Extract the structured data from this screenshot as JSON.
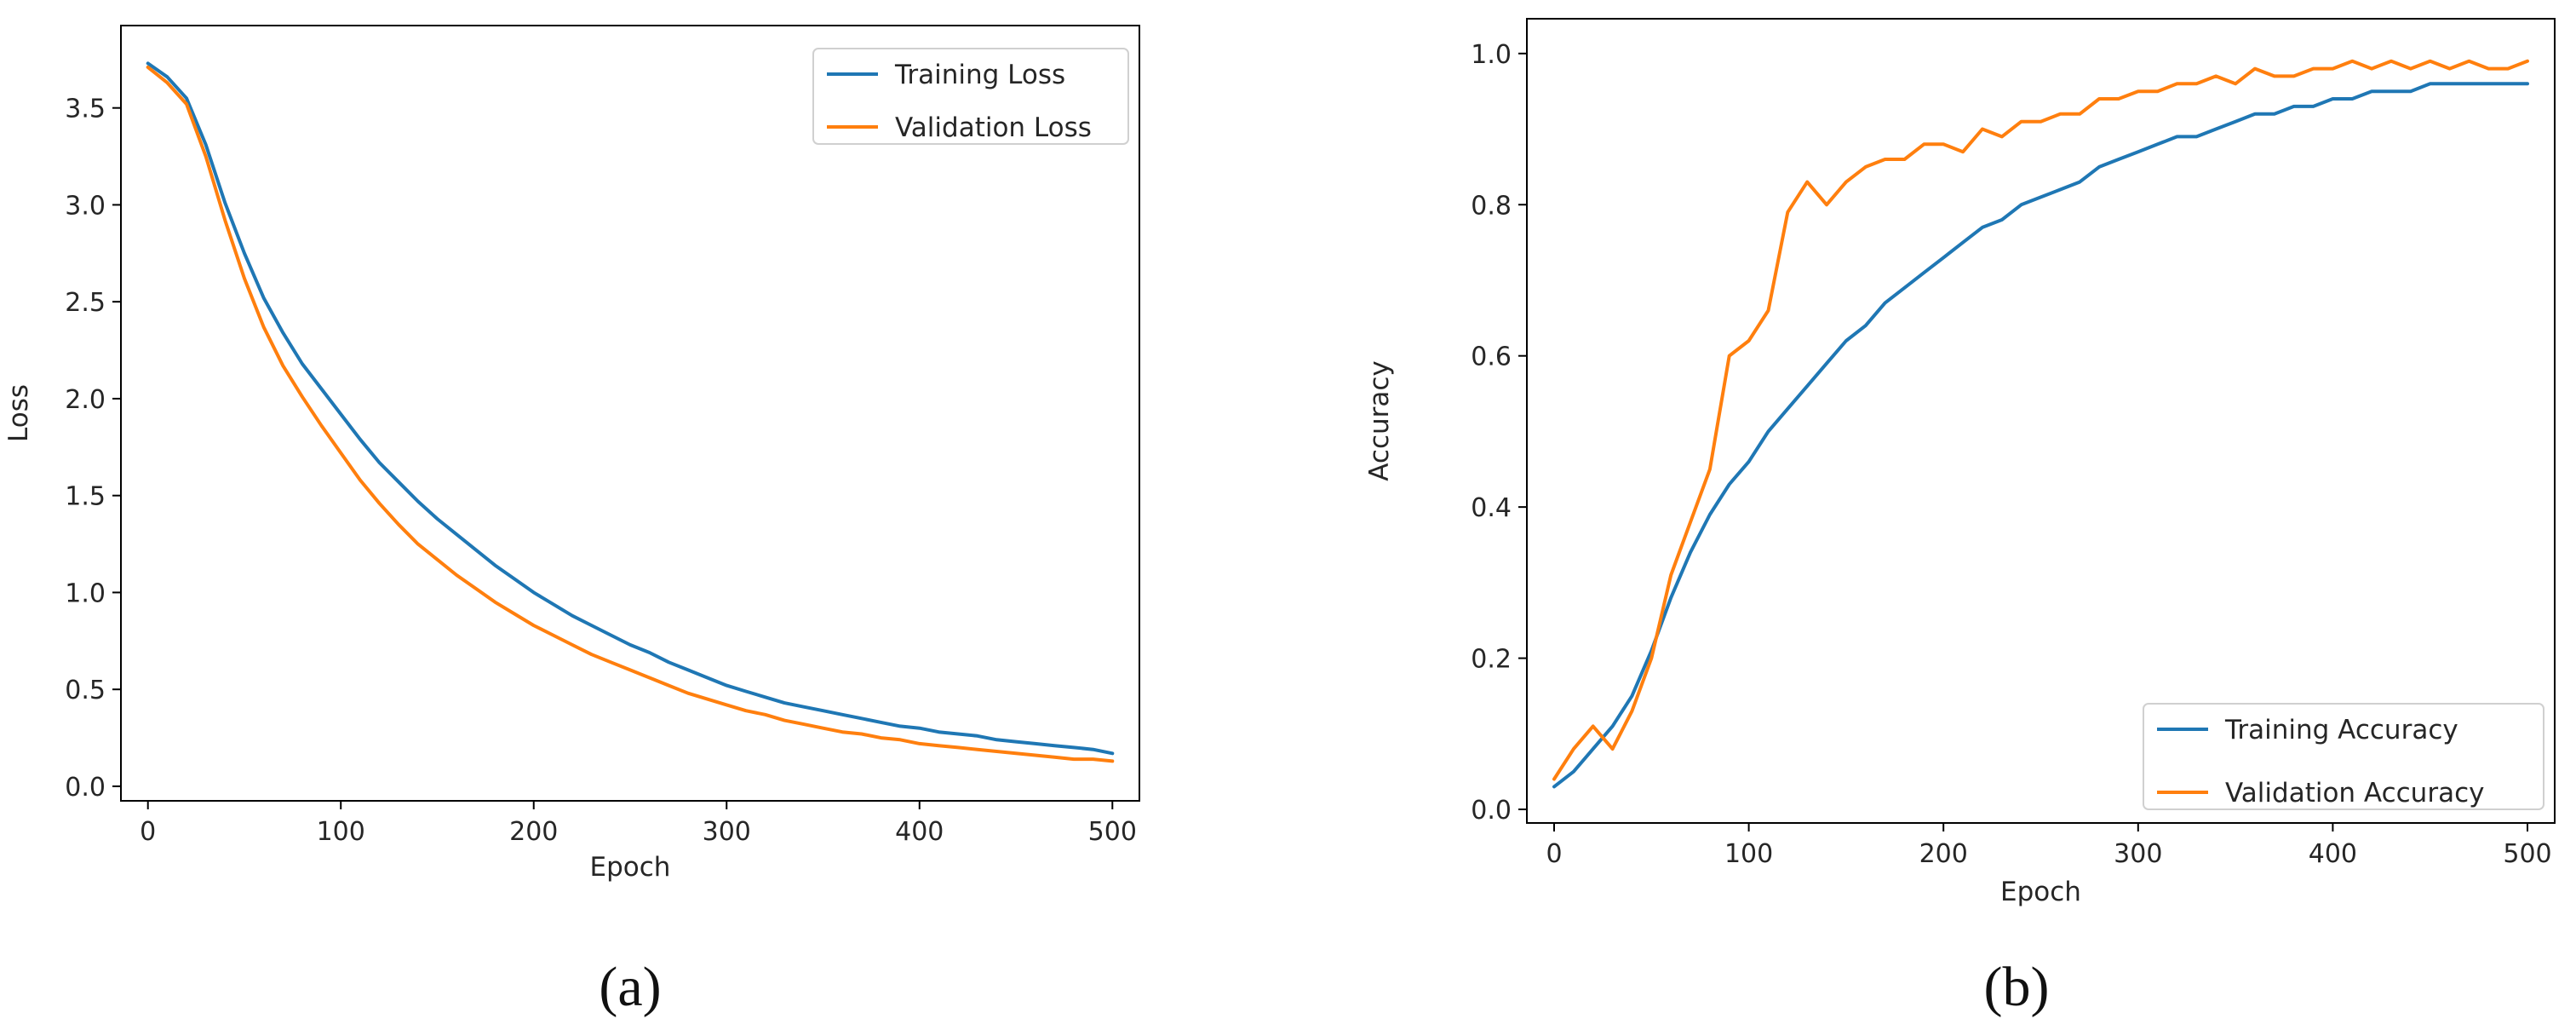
{
  "colors": {
    "training": "#1f77b4",
    "validation": "#ff7f0e",
    "axis": "#000000",
    "legend_border": "#d0d0d0"
  },
  "chart_data": [
    {
      "type": "line",
      "panel_label": "(a)",
      "title": "",
      "xlabel": "Epoch",
      "ylabel": "Loss",
      "xlim": [
        -14,
        514
      ],
      "ylim": [
        -0.075,
        3.925
      ],
      "xticks": [
        0,
        100,
        200,
        300,
        400,
        500
      ],
      "yticks": [
        0.0,
        0.5,
        1.0,
        1.5,
        2.0,
        2.5,
        3.0,
        3.5
      ],
      "xtick_labels": [
        "0",
        "100",
        "200",
        "300",
        "400",
        "500"
      ],
      "ytick_labels": [
        "0.0",
        "0.5",
        "1.0",
        "1.5",
        "2.0",
        "2.5",
        "3.0",
        "3.5"
      ],
      "grid": false,
      "legend_position": "top-right",
      "series": [
        {
          "name": "Training Loss",
          "color": "#1f77b4",
          "x": [
            0,
            10,
            20,
            30,
            40,
            50,
            60,
            70,
            80,
            90,
            100,
            110,
            120,
            130,
            140,
            150,
            160,
            170,
            180,
            190,
            200,
            210,
            220,
            230,
            240,
            250,
            260,
            270,
            280,
            290,
            300,
            310,
            320,
            330,
            340,
            350,
            360,
            370,
            380,
            390,
            400,
            410,
            420,
            430,
            440,
            450,
            460,
            470,
            480,
            490,
            500
          ],
          "y": [
            3.73,
            3.66,
            3.55,
            3.31,
            3.01,
            2.75,
            2.52,
            2.34,
            2.18,
            2.05,
            1.92,
            1.79,
            1.67,
            1.57,
            1.47,
            1.38,
            1.3,
            1.22,
            1.14,
            1.07,
            1.0,
            0.94,
            0.88,
            0.83,
            0.78,
            0.73,
            0.69,
            0.64,
            0.6,
            0.56,
            0.52,
            0.49,
            0.46,
            0.43,
            0.41,
            0.39,
            0.37,
            0.35,
            0.33,
            0.31,
            0.3,
            0.28,
            0.27,
            0.26,
            0.24,
            0.23,
            0.22,
            0.21,
            0.2,
            0.19,
            0.17
          ]
        },
        {
          "name": "Validation Loss",
          "color": "#ff7f0e",
          "x": [
            0,
            10,
            20,
            30,
            40,
            50,
            60,
            70,
            80,
            90,
            100,
            110,
            120,
            130,
            140,
            150,
            160,
            170,
            180,
            190,
            200,
            210,
            220,
            230,
            240,
            250,
            260,
            270,
            280,
            290,
            300,
            310,
            320,
            330,
            340,
            350,
            360,
            370,
            380,
            390,
            400,
            410,
            420,
            430,
            440,
            450,
            460,
            470,
            480,
            490,
            500
          ],
          "y": [
            3.71,
            3.63,
            3.52,
            3.25,
            2.92,
            2.62,
            2.37,
            2.17,
            2.01,
            1.86,
            1.72,
            1.58,
            1.46,
            1.35,
            1.25,
            1.17,
            1.09,
            1.02,
            0.95,
            0.89,
            0.83,
            0.78,
            0.73,
            0.68,
            0.64,
            0.6,
            0.56,
            0.52,
            0.48,
            0.45,
            0.42,
            0.39,
            0.37,
            0.34,
            0.32,
            0.3,
            0.28,
            0.27,
            0.25,
            0.24,
            0.22,
            0.21,
            0.2,
            0.19,
            0.18,
            0.17,
            0.16,
            0.15,
            0.14,
            0.14,
            0.13
          ]
        }
      ]
    },
    {
      "type": "line",
      "panel_label": "(b)",
      "title": "",
      "xlabel": "Epoch",
      "ylabel": "Accuracy",
      "xlim": [
        -14,
        514
      ],
      "ylim": [
        -0.018,
        1.046
      ],
      "xticks": [
        0,
        100,
        200,
        300,
        400,
        500
      ],
      "yticks": [
        0.0,
        0.2,
        0.4,
        0.6,
        0.8,
        1.0
      ],
      "xtick_labels": [
        "0",
        "100",
        "200",
        "300",
        "400",
        "500"
      ],
      "ytick_labels": [
        "0.0",
        "0.2",
        "0.4",
        "0.6",
        "0.8",
        "1.0"
      ],
      "grid": false,
      "legend_position": "bottom-right",
      "series": [
        {
          "name": "Training Accuracy",
          "color": "#1f77b4",
          "x": [
            0,
            10,
            20,
            30,
            40,
            50,
            60,
            70,
            80,
            90,
            100,
            110,
            120,
            130,
            140,
            150,
            160,
            170,
            180,
            190,
            200,
            210,
            220,
            230,
            240,
            250,
            260,
            270,
            280,
            290,
            300,
            310,
            320,
            330,
            340,
            350,
            360,
            370,
            380,
            390,
            400,
            410,
            420,
            430,
            440,
            450,
            460,
            470,
            480,
            490,
            500
          ],
          "y": [
            0.03,
            0.05,
            0.08,
            0.11,
            0.15,
            0.21,
            0.28,
            0.34,
            0.39,
            0.43,
            0.46,
            0.5,
            0.53,
            0.56,
            0.59,
            0.62,
            0.64,
            0.67,
            0.69,
            0.71,
            0.73,
            0.75,
            0.77,
            0.78,
            0.8,
            0.81,
            0.82,
            0.83,
            0.85,
            0.86,
            0.87,
            0.88,
            0.89,
            0.89,
            0.9,
            0.91,
            0.92,
            0.92,
            0.93,
            0.93,
            0.94,
            0.94,
            0.95,
            0.95,
            0.95,
            0.96,
            0.96,
            0.96,
            0.96,
            0.96,
            0.96
          ]
        },
        {
          "name": "Validation Accuracy",
          "color": "#ff7f0e",
          "x": [
            0,
            10,
            20,
            30,
            40,
            50,
            60,
            70,
            80,
            90,
            100,
            110,
            120,
            130,
            140,
            150,
            160,
            170,
            180,
            190,
            200,
            210,
            220,
            230,
            240,
            250,
            260,
            270,
            280,
            290,
            300,
            310,
            320,
            330,
            340,
            350,
            360,
            370,
            380,
            390,
            400,
            410,
            420,
            430,
            440,
            450,
            460,
            470,
            480,
            490,
            500
          ],
          "y": [
            0.04,
            0.08,
            0.11,
            0.08,
            0.13,
            0.2,
            0.31,
            0.38,
            0.45,
            0.6,
            0.62,
            0.66,
            0.79,
            0.83,
            0.8,
            0.83,
            0.85,
            0.86,
            0.86,
            0.88,
            0.88,
            0.87,
            0.9,
            0.89,
            0.91,
            0.91,
            0.92,
            0.92,
            0.94,
            0.94,
            0.95,
            0.95,
            0.96,
            0.96,
            0.97,
            0.96,
            0.98,
            0.97,
            0.97,
            0.98,
            0.98,
            0.99,
            0.98,
            0.99,
            0.98,
            0.99,
            0.98,
            0.99,
            0.98,
            0.98,
            0.99
          ]
        }
      ]
    }
  ]
}
